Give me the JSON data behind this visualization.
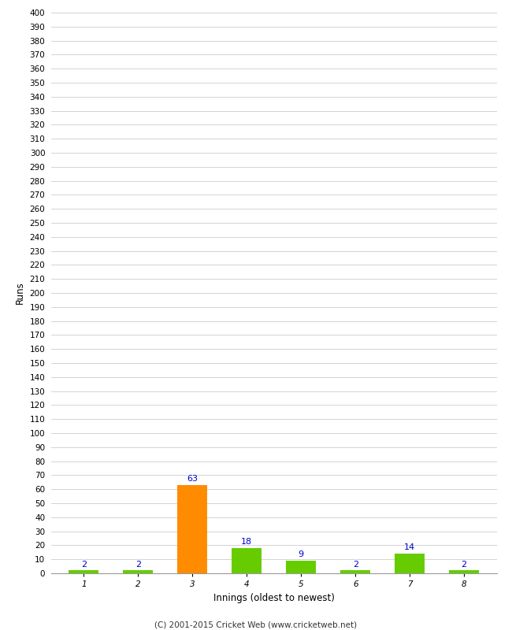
{
  "xlabel": "Innings (oldest to newest)",
  "ylabel": "Runs",
  "categories": [
    "1",
    "2",
    "3",
    "4",
    "5",
    "6",
    "7",
    "8"
  ],
  "values": [
    2,
    2,
    63,
    18,
    9,
    2,
    14,
    2
  ],
  "bar_colors": [
    "#66cc00",
    "#66cc00",
    "#ff8c00",
    "#66cc00",
    "#66cc00",
    "#66cc00",
    "#66cc00",
    "#66cc00"
  ],
  "ylim": [
    0,
    400
  ],
  "yticks": [
    0,
    10,
    20,
    30,
    40,
    50,
    60,
    70,
    80,
    90,
    100,
    110,
    120,
    130,
    140,
    150,
    160,
    170,
    180,
    190,
    200,
    210,
    220,
    230,
    240,
    250,
    260,
    270,
    280,
    290,
    300,
    310,
    320,
    330,
    340,
    350,
    360,
    370,
    380,
    390,
    400
  ],
  "background_color": "#ffffff",
  "grid_color": "#cccccc",
  "label_color": "#0000cc",
  "footer": "(C) 2001-2015 Cricket Web (www.cricketweb.net)",
  "tick_fontsize": 7.5,
  "label_fontsize": 8.5,
  "bar_width": 0.55
}
